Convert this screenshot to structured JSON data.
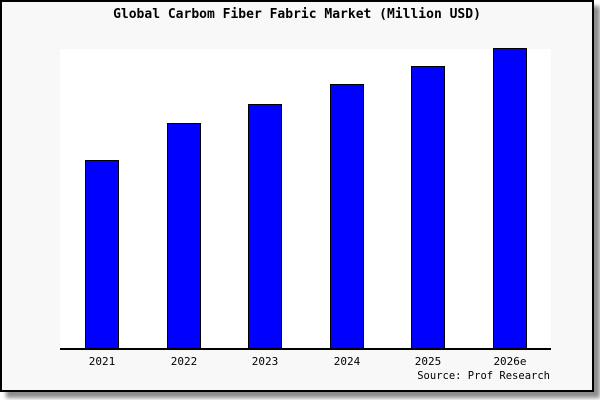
{
  "frame": {
    "background_color": "#f8f8f8",
    "plot_background_color": "#ffffff",
    "border_color": "#000000"
  },
  "chart_data": {
    "type": "bar",
    "title": "Global Carbom Fiber Fabric Market (Million USD)",
    "categories": [
      "2021",
      "2022",
      "2023",
      "2024",
      "2025",
      "2026e"
    ],
    "values": [
      188,
      225,
      244,
      264,
      282,
      300
    ],
    "values_unit": "bar heights in screen pixels - the chart displays no numeric y-axis, no ticks, no gridlines and no data labels",
    "values_pct_of_tallest": [
      62.7,
      75.0,
      81.3,
      88.0,
      94.0,
      100.0
    ],
    "xlabel": "",
    "ylabel": "",
    "legend_position": "none",
    "grid": false,
    "bar_color": "#0000ff",
    "bar_border_color": "#000000",
    "axis_line_color": "#000000",
    "source": "Source: Prof Research"
  }
}
